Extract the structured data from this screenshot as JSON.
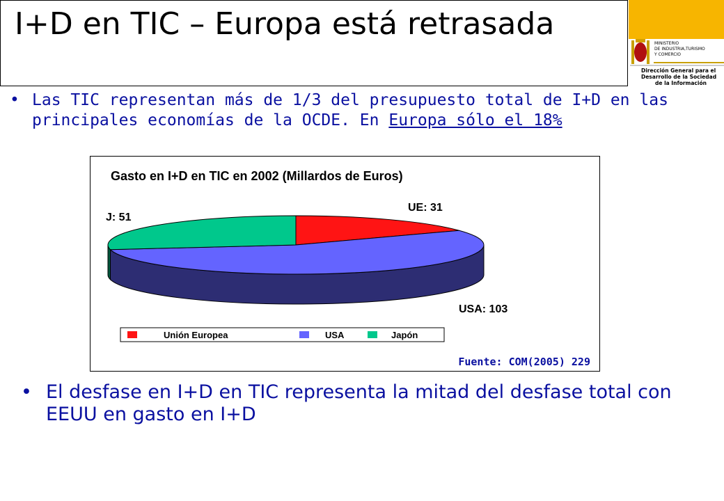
{
  "slide": {
    "title": "I+D en TIC – Europa está retrasada",
    "bullet1_part1": "Las TIC representan más de 1/3 del presupuesto total de I+D en las principales economías de la OCDE. En ",
    "bullet1_underlined": "Europa sólo el 18%",
    "bullet2": "El desfase en I+D en TIC representa la mitad del desfase total con EEUU en gasto en I+D",
    "bullet_glyph": "•"
  },
  "logo": {
    "ministry_lines": [
      "MINISTERIO",
      "DE INDUSTRIA,TURISMO",
      "Y COMERCIO"
    ],
    "dg_lines": [
      "Dirección General para el",
      "Desarrollo de la Sociedad",
      "de la Información"
    ]
  },
  "chart_data": {
    "type": "pie",
    "style": "3d",
    "title": "Gasto en I+D en TIC en 2002 (Millardos de Euros)",
    "categories": [
      "Unión Europea",
      "USA",
      "Japón"
    ],
    "values": [
      31,
      103,
      51
    ],
    "data_labels": [
      "UE: 31",
      "USA: 103",
      "J: 51"
    ],
    "colors": [
      "#ff1414",
      "#6464ff",
      "#00c88c"
    ],
    "legend": "bottom",
    "source": "Fuente: COM(2005) 229"
  }
}
